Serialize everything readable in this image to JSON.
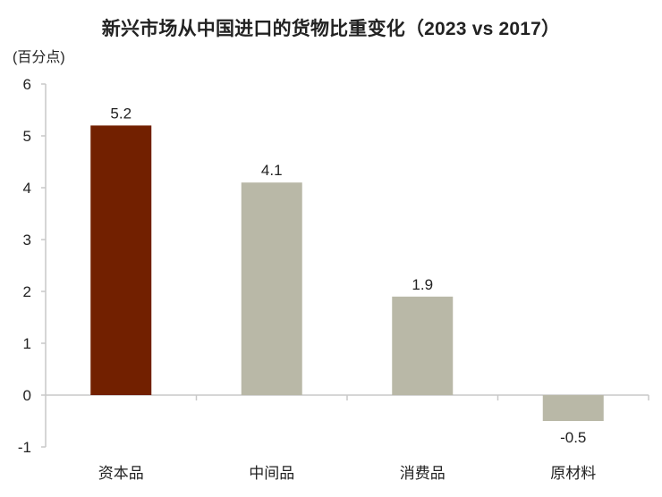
{
  "chart_data": {
    "type": "bar",
    "title": "新兴市场从中国进口的货物比重变化（2023 vs 2017）",
    "ylabel": "(百分点)",
    "xlabel": "",
    "categories": [
      "资本品",
      "中间品",
      "消费品",
      "原材料"
    ],
    "values": [
      5.2,
      4.1,
      1.9,
      -0.5
    ],
    "value_labels": [
      "5.2",
      "4.1",
      "1.9",
      "-0.5"
    ],
    "ylim": [
      -1,
      6
    ],
    "yticks": [
      -1,
      0,
      1,
      2,
      3,
      4,
      5,
      6
    ],
    "grid": false,
    "legend": null,
    "colors": [
      "#722000",
      "#b9b8a7",
      "#b9b8a7",
      "#b9b8a7"
    ],
    "axis_color": "#c8c8c8"
  }
}
